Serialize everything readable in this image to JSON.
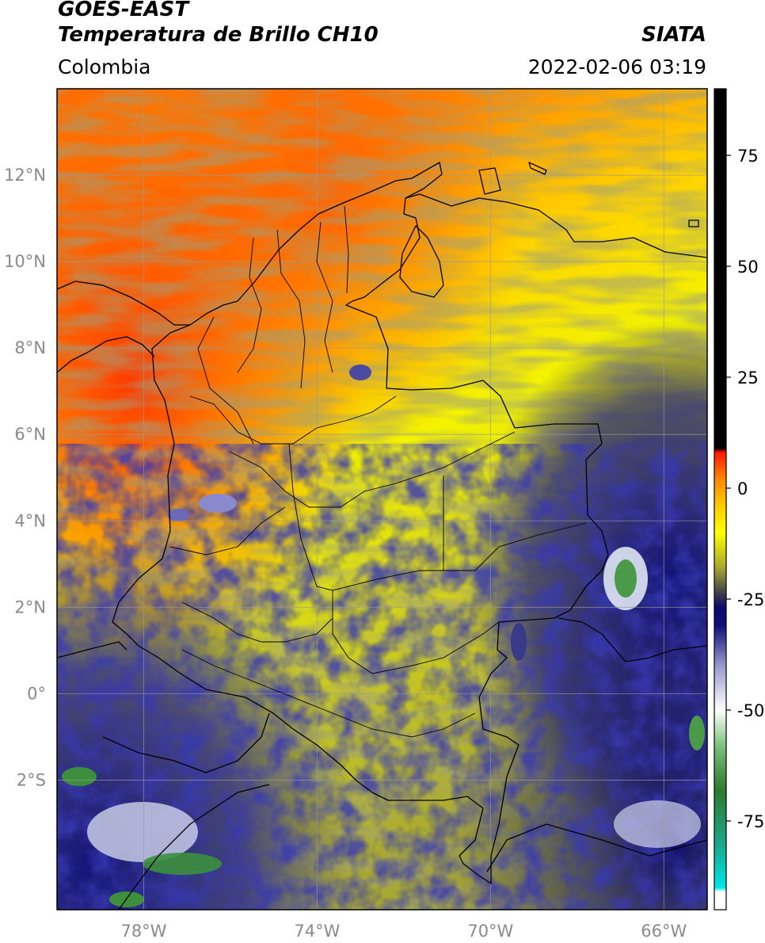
{
  "header": {
    "satellite": "GOES-EAST",
    "product": "Temperatura de Brillo CH10",
    "region": "Colombia",
    "organization": "SIATA",
    "timestamp": "2022-02-06 03:19"
  },
  "map": {
    "lon_range": [
      -80,
      -65
    ],
    "lat_range": [
      -5,
      14
    ],
    "lat_ticks": [
      {
        "value": 12,
        "label": "12°N"
      },
      {
        "value": 10,
        "label": "10°N"
      },
      {
        "value": 8,
        "label": "8°N"
      },
      {
        "value": 6,
        "label": "6°N"
      },
      {
        "value": 4,
        "label": "4°N"
      },
      {
        "value": 2,
        "label": "2°N"
      },
      {
        "value": 0,
        "label": "0°"
      },
      {
        "value": -2,
        "label": "2°S"
      }
    ],
    "lon_ticks": [
      {
        "value": -78,
        "label": "78°W"
      },
      {
        "value": -74,
        "label": "74°W"
      },
      {
        "value": -70,
        "label": "70°W"
      },
      {
        "value": -66,
        "label": "66°W"
      }
    ],
    "grid": true
  },
  "colorbar": {
    "range": [
      -95,
      90
    ],
    "ticks": [
      {
        "value": 75,
        "label": "75"
      },
      {
        "value": 50,
        "label": "50"
      },
      {
        "value": 25,
        "label": "25"
      },
      {
        "value": 0,
        "label": "0"
      },
      {
        "value": -25,
        "label": "-25"
      },
      {
        "value": -50,
        "label": "-50"
      },
      {
        "value": -75,
        "label": "-75"
      }
    ],
    "stops": [
      {
        "value": -95,
        "color": "#ffffff"
      },
      {
        "value": -91,
        "color": "#ffffff"
      },
      {
        "value": -90,
        "color": "#00e5e5"
      },
      {
        "value": -80,
        "color": "#1aa78a"
      },
      {
        "value": -68,
        "color": "#2e7a2e"
      },
      {
        "value": -58,
        "color": "#7cc27c"
      },
      {
        "value": -50,
        "color": "#ffffff"
      },
      {
        "value": -40,
        "color": "#9999cc"
      },
      {
        "value": -31,
        "color": "#10107a"
      },
      {
        "value": -27,
        "color": "#0a0a6e"
      },
      {
        "value": -24,
        "color": "#3a3a4a"
      },
      {
        "value": -18,
        "color": "#a6a630"
      },
      {
        "value": -10,
        "color": "#ffff00"
      },
      {
        "value": -4,
        "color": "#ffcc00"
      },
      {
        "value": 2,
        "color": "#ff8800"
      },
      {
        "value": 8,
        "color": "#ff1a00"
      },
      {
        "value": 9,
        "color": "#000000"
      },
      {
        "value": 90,
        "color": "#000000"
      }
    ]
  }
}
